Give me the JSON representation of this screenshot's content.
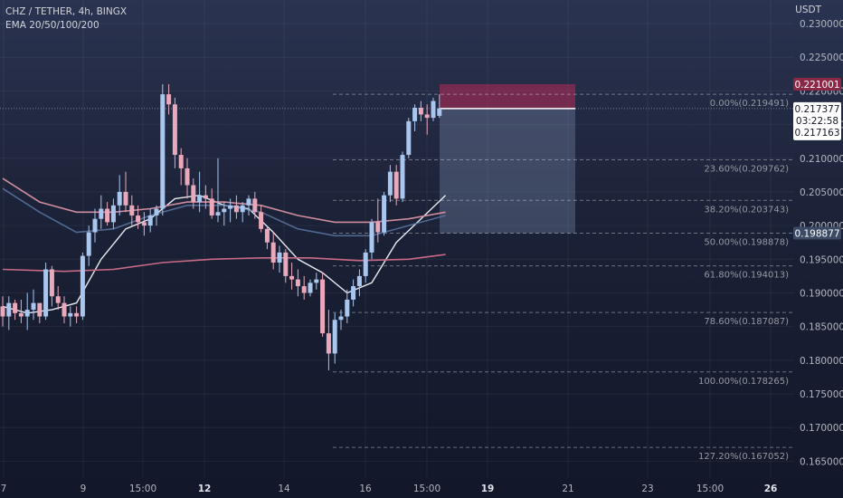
{
  "header": {
    "symbol_line": "CHZ / TETHER, 4h, BINGX",
    "indicator_line": "EMA 20/50/100/200"
  },
  "chart_data": {
    "type": "candlestick",
    "currency": "USDT",
    "ylim": [
      0.1625,
      0.2335
    ],
    "y_ticks": [
      "0.230000",
      "0.225000",
      "0.220000",
      "0.215000",
      "0.210000",
      "0.205000",
      "0.200000",
      "0.195000",
      "0.190000",
      "0.185000",
      "0.180000",
      "0.175000",
      "0.170000",
      "0.165000"
    ],
    "x_ticks": [
      {
        "label": "7",
        "bold": false
      },
      {
        "label": "9",
        "bold": false
      },
      {
        "label": "15:00",
        "bold": false
      },
      {
        "label": "12",
        "bold": true
      },
      {
        "label": "14",
        "bold": false
      },
      {
        "label": "16",
        "bold": false
      },
      {
        "label": "15:00",
        "bold": false
      },
      {
        "label": "19",
        "bold": true
      },
      {
        "label": "21",
        "bold": false
      },
      {
        "label": "23",
        "bold": false
      },
      {
        "label": "15:00",
        "bold": false
      },
      {
        "label": "26",
        "bold": true
      }
    ],
    "candles": [
      [
        0.188,
        0.1895,
        0.185,
        0.1865
      ],
      [
        0.1865,
        0.1895,
        0.1845,
        0.1885
      ],
      [
        0.1885,
        0.189,
        0.186,
        0.187
      ],
      [
        0.187,
        0.189,
        0.1855,
        0.1865
      ],
      [
        0.1865,
        0.19,
        0.1845,
        0.1875
      ],
      [
        0.1875,
        0.1905,
        0.186,
        0.1885
      ],
      [
        0.1885,
        0.1885,
        0.1855,
        0.1865
      ],
      [
        0.1865,
        0.1945,
        0.186,
        0.1935
      ],
      [
        0.1935,
        0.194,
        0.188,
        0.1895
      ],
      [
        0.1895,
        0.191,
        0.1875,
        0.1885
      ],
      [
        0.1885,
        0.1895,
        0.1855,
        0.1865
      ],
      [
        0.1865,
        0.188,
        0.185,
        0.187
      ],
      [
        0.187,
        0.188,
        0.1855,
        0.1865
      ],
      [
        0.1865,
        0.196,
        0.186,
        0.1955
      ],
      [
        0.1955,
        0.2,
        0.194,
        0.199
      ],
      [
        0.199,
        0.2025,
        0.1975,
        0.201
      ],
      [
        0.201,
        0.2045,
        0.1995,
        0.2025
      ],
      [
        0.2025,
        0.2035,
        0.2,
        0.2005
      ],
      [
        0.2005,
        0.204,
        0.1995,
        0.203
      ],
      [
        0.203,
        0.2075,
        0.2015,
        0.205
      ],
      [
        0.205,
        0.208,
        0.202,
        0.203
      ],
      [
        0.203,
        0.2045,
        0.2,
        0.2015
      ],
      [
        0.2015,
        0.203,
        0.1995,
        0.2005
      ],
      [
        0.2005,
        0.202,
        0.1985,
        0.2
      ],
      [
        0.2,
        0.2025,
        0.199,
        0.2015
      ],
      [
        0.2015,
        0.203,
        0.2,
        0.2025
      ],
      [
        0.2025,
        0.221,
        0.2015,
        0.2195
      ],
      [
        0.2195,
        0.221,
        0.2165,
        0.218
      ],
      [
        0.218,
        0.219,
        0.2085,
        0.2105
      ],
      [
        0.2105,
        0.2115,
        0.206,
        0.2085
      ],
      [
        0.2085,
        0.21,
        0.204,
        0.206
      ],
      [
        0.206,
        0.207,
        0.2025,
        0.2035
      ],
      [
        0.2035,
        0.208,
        0.202,
        0.2045
      ],
      [
        0.2045,
        0.206,
        0.2025,
        0.204
      ],
      [
        0.204,
        0.2055,
        0.201,
        0.2015
      ],
      [
        0.2015,
        0.21,
        0.2005,
        0.202
      ],
      [
        0.202,
        0.2035,
        0.2,
        0.2025
      ],
      [
        0.2025,
        0.204,
        0.2005,
        0.203
      ],
      [
        0.203,
        0.2045,
        0.201,
        0.202
      ],
      [
        0.202,
        0.2035,
        0.2005,
        0.203
      ],
      [
        0.203,
        0.2045,
        0.2015,
        0.204
      ],
      [
        0.204,
        0.205,
        0.201,
        0.202
      ],
      [
        0.202,
        0.203,
        0.199,
        0.1995
      ],
      [
        0.1995,
        0.2,
        0.1965,
        0.1975
      ],
      [
        0.1975,
        0.199,
        0.1935,
        0.1945
      ],
      [
        0.1945,
        0.197,
        0.193,
        0.196
      ],
      [
        0.196,
        0.1965,
        0.1915,
        0.1925
      ],
      [
        0.1925,
        0.1945,
        0.1905,
        0.192
      ],
      [
        0.192,
        0.1935,
        0.1895,
        0.191
      ],
      [
        0.191,
        0.1925,
        0.189,
        0.19
      ],
      [
        0.19,
        0.192,
        0.1895,
        0.1915
      ],
      [
        0.1915,
        0.193,
        0.1905,
        0.192
      ],
      [
        0.192,
        0.193,
        0.1835,
        0.184
      ],
      [
        0.184,
        0.1875,
        0.1785,
        0.181
      ],
      [
        0.181,
        0.187,
        0.1795,
        0.186
      ],
      [
        0.186,
        0.1875,
        0.1845,
        0.1865
      ],
      [
        0.1865,
        0.1905,
        0.1855,
        0.189
      ],
      [
        0.189,
        0.192,
        0.188,
        0.191
      ],
      [
        0.191,
        0.1935,
        0.1895,
        0.1925
      ],
      [
        0.1925,
        0.1965,
        0.1915,
        0.196
      ],
      [
        0.196,
        0.201,
        0.195,
        0.2005
      ],
      [
        0.2005,
        0.204,
        0.1975,
        0.199
      ],
      [
        0.199,
        0.205,
        0.1985,
        0.2045
      ],
      [
        0.2045,
        0.209,
        0.2035,
        0.208
      ],
      [
        0.208,
        0.209,
        0.203,
        0.204
      ],
      [
        0.204,
        0.211,
        0.2035,
        0.2105
      ],
      [
        0.2105,
        0.216,
        0.21,
        0.2155
      ],
      [
        0.2155,
        0.218,
        0.214,
        0.2175
      ],
      [
        0.2175,
        0.2185,
        0.2155,
        0.2165
      ],
      [
        0.2165,
        0.218,
        0.2135,
        0.216
      ],
      [
        0.216,
        0.219,
        0.2155,
        0.2185
      ],
      [
        0.2163,
        0.2195,
        0.216,
        0.2174
      ]
    ],
    "ema_series": [
      {
        "name": "EMA 20",
        "color": "#e8eaf0",
        "values": [
          [
            0,
            0.188
          ],
          [
            4,
            0.187
          ],
          [
            8,
            0.1875
          ],
          [
            12,
            0.1885
          ],
          [
            16,
            0.195
          ],
          [
            20,
            0.1995
          ],
          [
            24,
            0.201
          ],
          [
            28,
            0.204
          ],
          [
            32,
            0.2045
          ],
          [
            36,
            0.203
          ],
          [
            40,
            0.2025
          ],
          [
            44,
            0.199
          ],
          [
            48,
            0.195
          ],
          [
            52,
            0.193
          ],
          [
            56,
            0.19
          ],
          [
            60,
            0.1915
          ],
          [
            64,
            0.1975
          ],
          [
            68,
            0.201
          ],
          [
            72,
            0.2045
          ]
        ]
      },
      {
        "name": "EMA 50",
        "color": "#5f7aa6",
        "values": [
          [
            0,
            0.2055
          ],
          [
            6,
            0.202
          ],
          [
            12,
            0.199
          ],
          [
            18,
            0.1995
          ],
          [
            24,
            0.2015
          ],
          [
            30,
            0.203
          ],
          [
            36,
            0.203
          ],
          [
            42,
            0.202
          ],
          [
            48,
            0.1995
          ],
          [
            54,
            0.1985
          ],
          [
            60,
            0.1985
          ],
          [
            66,
            0.2
          ],
          [
            72,
            0.2015
          ]
        ]
      },
      {
        "name": "EMA 100",
        "color": "#cf8c9f",
        "values": [
          [
            0,
            0.207
          ],
          [
            6,
            0.2035
          ],
          [
            12,
            0.202
          ],
          [
            18,
            0.202
          ],
          [
            24,
            0.2025
          ],
          [
            30,
            0.2035
          ],
          [
            36,
            0.2035
          ],
          [
            42,
            0.203
          ],
          [
            48,
            0.2015
          ],
          [
            54,
            0.2005
          ],
          [
            60,
            0.2005
          ],
          [
            66,
            0.201
          ],
          [
            72,
            0.202
          ]
        ]
      },
      {
        "name": "EMA 200",
        "color": "#c86a86",
        "values": [
          [
            0,
            0.1935
          ],
          [
            10,
            0.1932
          ],
          [
            18,
            0.1935
          ],
          [
            26,
            0.1945
          ],
          [
            34,
            0.195
          ],
          [
            42,
            0.1952
          ],
          [
            50,
            0.1952
          ],
          [
            58,
            0.1948
          ],
          [
            66,
            0.195
          ],
          [
            72,
            0.1957
          ]
        ]
      }
    ],
    "fib_levels": [
      {
        "label": "0.00%(0.219491)",
        "value": 0.219491
      },
      {
        "label": "23.60%(0.209762)",
        "value": 0.209762
      },
      {
        "label": "38.20%(0.203743)",
        "value": 0.203743
      },
      {
        "label": "50.00%(0.198878)",
        "value": 0.198878
      },
      {
        "label": "61.80%(0.194013)",
        "value": 0.194013
      },
      {
        "label": "78.60%(0.187087)",
        "value": 0.187087
      },
      {
        "label": "100.00%(0.178265)",
        "value": 0.178265
      },
      {
        "label": "127.20%(0.167052)",
        "value": 0.167052
      }
    ],
    "position_tool": {
      "stop": 0.221001,
      "entry": 0.217377,
      "target": 0.198877
    },
    "price_labels": [
      {
        "text": "0.221001",
        "value": 0.221001,
        "bg": "#8a2846",
        "fg": "#ffffff"
      },
      {
        "text": "0.217377",
        "value": 0.217377,
        "bg": "#ffffff",
        "fg": "#131722",
        "sub": "03:22:58",
        "sub2": "0.217163"
      },
      {
        "text": "0.198877",
        "value": 0.198877,
        "bg": "#3c4a66",
        "fg": "#ffffff"
      }
    ],
    "colors": {
      "up": "#a9c7ee",
      "down": "#e9a9bb",
      "grid": "rgba(255,255,255,0.055)",
      "fib": "rgba(210,214,225,0.45)"
    }
  }
}
